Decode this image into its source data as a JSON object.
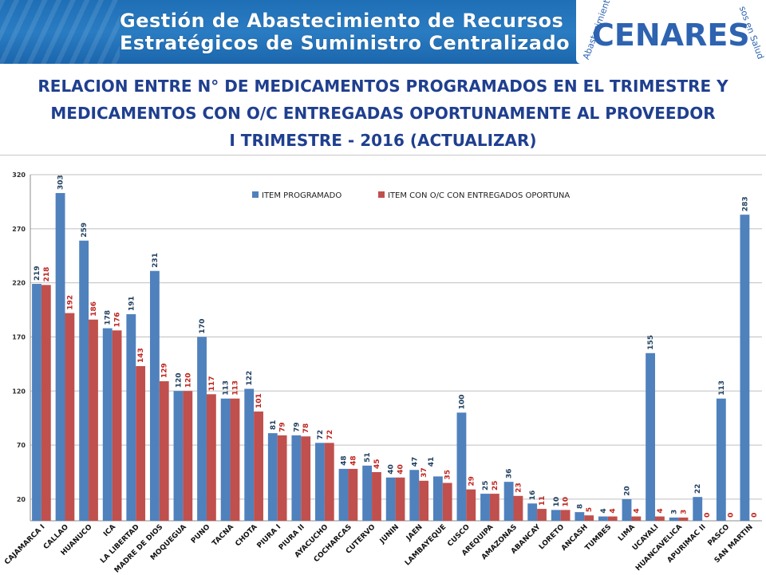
{
  "banner": {
    "line1": "Gestión de Abastecimiento de Recursos",
    "line2": "Estratégicos de Suministro Centralizado",
    "logo_text": "CENARES",
    "logo_arc_left": "Abastecimiento",
    "logo_arc_right": "sos en Salud",
    "colors": {
      "background": "#1f6fb6",
      "logo_blue": "#2d63b0"
    }
  },
  "title": {
    "line1": "RELACION ENTRE N° DE MEDICAMENTOS PROGRAMADOS EN EL TRIMESTRE Y",
    "line2": "MEDICAMENTOS CON O/C ENTREGADAS OPORTUNAMENTE AL PROVEEDOR",
    "line3": "I TRIMESTRE  - 2016 (ACTUALIZAR)"
  },
  "chart_data": {
    "type": "bar",
    "title": "",
    "xlabel": "",
    "ylabel": "",
    "ylim": [
      0,
      320
    ],
    "yticks": [
      20,
      70,
      120,
      170,
      220,
      270,
      320
    ],
    "grid": true,
    "legend_position": "top-center",
    "categories": [
      "CAJAMARCA I",
      "CALLAO",
      "HUANUCO",
      "ICA",
      "LA LIBERTAD",
      "MADRE DE DIOS",
      "MOQUEGUA",
      "PUNO",
      "TACNA",
      "CHOTA",
      "PIURA I",
      "PIURA II",
      "AYACUCHO",
      "COCHARCAS",
      "CUTERVO",
      "JUNIN",
      "JAEN",
      "LAMBAYEQUE",
      "CUSCO",
      "AREQUIPA",
      "AMAZONAS",
      "ABANCAY",
      "LORETO",
      "ANCASH",
      "TUMBES",
      "LIMA",
      "UCAYALI",
      "HUANCAVELICA",
      "APURIMAC II",
      "PASCO",
      "SAN MARTIN"
    ],
    "series": [
      {
        "name": "ITEM PROGRAMADO",
        "color": "#4f81bd",
        "values": [
          219,
          303,
          259,
          178,
          191,
          231,
          120,
          170,
          113,
          122,
          81,
          79,
          72,
          48,
          51,
          40,
          47,
          41,
          100,
          25,
          36,
          16,
          10,
          8,
          4,
          20,
          155,
          3,
          22,
          113,
          283
        ],
        "labels": [
          219,
          303,
          259,
          178,
          191,
          231,
          120,
          170,
          113,
          122,
          81,
          79,
          72,
          48,
          51,
          40,
          47,
          null,
          100,
          25,
          36,
          16,
          10,
          8,
          4,
          20,
          155,
          3,
          22,
          113,
          283
        ]
      },
      {
        "name": "ITEM CON O/C CON  ENTREGADOS OPORTUNA",
        "color": "#c0504d",
        "values": [
          218,
          192,
          186,
          176,
          143,
          129,
          120,
          117,
          113,
          101,
          79,
          78,
          72,
          48,
          45,
          40,
          37,
          35,
          29,
          25,
          23,
          11,
          10,
          5,
          4,
          4,
          4,
          3,
          0,
          0,
          0
        ],
        "labels": [
          218,
          192,
          186,
          176,
          143,
          129,
          120,
          117,
          113,
          101,
          79,
          78,
          72,
          48,
          45,
          40,
          37,
          35,
          29,
          25,
          23,
          11,
          10,
          5,
          4,
          4,
          4,
          3,
          0,
          0,
          0
        ]
      }
    ],
    "extra_labels": [
      {
        "text": "41",
        "category": "JAEN",
        "series": "ITEM PROGRAMADO"
      }
    ]
  }
}
